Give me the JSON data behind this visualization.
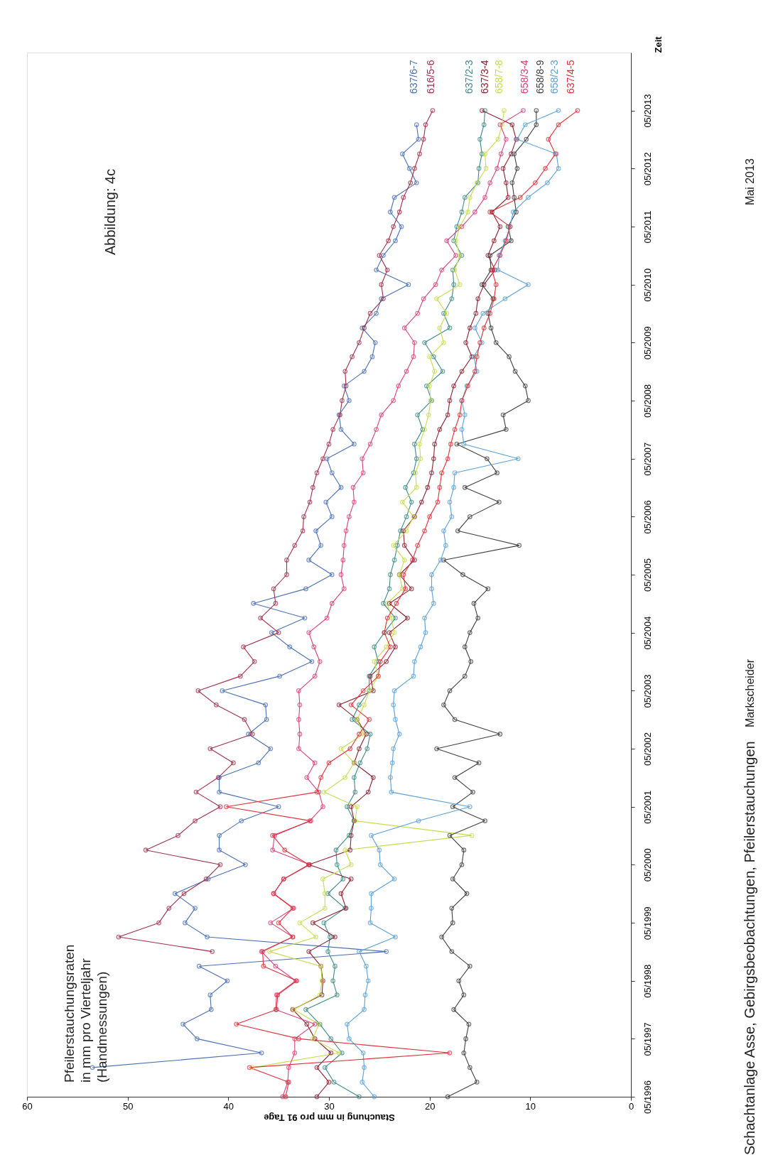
{
  "chart_data": {
    "type": "line",
    "orientation": "horizontal",
    "title": "Abbildung: 4c",
    "xlabel": "Stauchung in mm pro 91 Tage",
    "ylabel": "Zeit",
    "annotations": [
      "Pfeilerstauchungsraten\nin mm pro Vierteljahr\n(Handmessungen)",
      "Schachtanlage Asse, Gebirgsbeobachtungen, Pfeilerstauchungen",
      "Markscheider",
      "Mai 2013"
    ],
    "legend": "top",
    "grid": false,
    "marker": "circle",
    "line_style": "solid",
    "xlim": [
      60,
      0
    ],
    "xticks": [
      60,
      50,
      40,
      30,
      20,
      10,
      0
    ],
    "ylim": [
      "1996-05",
      "2014-05"
    ],
    "yticks": [
      {
        "value": "1996-05",
        "label": "05/1996"
      },
      {
        "value": "1997-05",
        "label": "05/1997"
      },
      {
        "value": "1998-05",
        "label": "05/1998"
      },
      {
        "value": "1999-05",
        "label": "05/1999"
      },
      {
        "value": "2000-05",
        "label": "05/2000"
      },
      {
        "value": "2001-05",
        "label": "05/2001"
      },
      {
        "value": "2002-05",
        "label": "05/2002"
      },
      {
        "value": "2003-05",
        "label": "05/2003"
      },
      {
        "value": "2004-05",
        "label": "05/2004"
      },
      {
        "value": "2005-05",
        "label": "05/2005"
      },
      {
        "value": "2006-05",
        "label": "05/2006"
      },
      {
        "value": "2007-05",
        "label": "05/2007"
      },
      {
        "value": "2008-05",
        "label": "05/2008"
      },
      {
        "value": "2009-05",
        "label": "05/2009"
      },
      {
        "value": "2010-05",
        "label": "05/2010"
      },
      {
        "value": "2011-05",
        "label": "05/2011"
      },
      {
        "value": "2012-05",
        "label": "05/2012"
      },
      {
        "value": "2013-05",
        "label": "05/2013"
      }
    ],
    "x": [
      "1996-05",
      "1996-08",
      "1996-11",
      "1997-02",
      "1997-05",
      "1997-08",
      "1997-11",
      "1998-02",
      "1998-05",
      "1998-08",
      "1998-11",
      "1999-02",
      "1999-05",
      "1999-08",
      "1999-11",
      "2000-02",
      "2000-05",
      "2000-08",
      "2000-11",
      "2001-02",
      "2001-05",
      "2001-08",
      "2001-11",
      "2002-02",
      "2002-05",
      "2002-08",
      "2002-11",
      "2003-02",
      "2003-05",
      "2003-08",
      "2003-11",
      "2004-02",
      "2004-05",
      "2004-08",
      "2004-11",
      "2005-02",
      "2005-05",
      "2005-08",
      "2005-11",
      "2006-02",
      "2006-05",
      "2006-08",
      "2006-11",
      "2007-02",
      "2007-05",
      "2007-08",
      "2007-11",
      "2008-02",
      "2008-05",
      "2008-08",
      "2008-11",
      "2009-02",
      "2009-05",
      "2009-08",
      "2009-11",
      "2010-02",
      "2010-05",
      "2010-08",
      "2010-11",
      "2011-02",
      "2011-05",
      "2011-08",
      "2011-11",
      "2012-02",
      "2012-05",
      "2012-08",
      "2012-11",
      "2013-02",
      "2013-05"
    ],
    "series": [
      {
        "name": "637/6-7",
        "color": "#4a6fb5",
        "values": [
          null,
          null,
          53.5,
          36.7,
          43.1,
          44.5,
          41.7,
          41.8,
          40.1,
          42.9,
          24.3,
          42.1,
          44.3,
          43.3,
          45.3,
          42.0,
          38.3,
          40.9,
          40.9,
          38.7,
          35.0,
          40.9,
          40.9,
          37.0,
          35.8,
          38.0,
          36.2,
          36.3,
          40.6,
          34.9,
          31.7,
          33.9,
          35.7,
          32.4,
          37.5,
          32.3,
          29.7,
          32.0,
          30.8,
          31.3,
          29.7,
          30.3,
          28.8,
          29.7,
          30.2,
          27.5,
          28.8,
          29.0,
          28.0,
          28.5,
          26.5,
          25.7,
          25.4,
          26.7,
          25.3,
          24.8,
          22.1,
          25.3,
          24.6,
          23.4,
          22.8,
          23.9,
          23.5,
          21.3,
          22.0,
          22.7,
          21.1,
          21.3,
          null
        ]
      },
      {
        "name": "616/5-6",
        "color": "#a0304a",
        "values": [
          null,
          null,
          null,
          null,
          null,
          null,
          null,
          null,
          null,
          null,
          41.6,
          50.9,
          46.9,
          45.9,
          44.4,
          42.2,
          40.8,
          48.2,
          45.0,
          43.3,
          40.8,
          43.2,
          41.0,
          39.5,
          41.8,
          37.6,
          38.4,
          41.2,
          43.0,
          38.8,
          37.4,
          38.5,
          35.0,
          36.8,
          35.3,
          35.5,
          34.2,
          34.2,
          33.4,
          32.6,
          32.5,
          31.9,
          31.6,
          31.2,
          30.6,
          30.0,
          29.6,
          28.9,
          28.7,
          28.3,
          28.4,
          27.7,
          27.0,
          26.5,
          25.9,
          24.6,
          24.8,
          24.2,
          25.0,
          24.1,
          23.6,
          23.0,
          22.6,
          21.9,
          21.5,
          21.0,
          20.6,
          20.4,
          19.7
        ]
      },
      {
        "name": "637/2-3",
        "color": "#3d8a86",
        "values": [
          27.0,
          29.5,
          30.4,
          28.7,
          29.8,
          30.9,
          32.3,
          29.2,
          29.6,
          29.4,
          30.1,
          29.9,
          30.5,
          28.4,
          30.1,
          28.6,
          29.2,
          29.3,
          28.0,
          27.5,
          28.2,
          27.4,
          27.5,
          26.9,
          26.2,
          25.9,
          27.7,
          27.0,
          26.0,
          26.0,
          25.1,
          25.5,
          24.5,
          23.4,
          24.6,
          24.0,
          23.9,
          23.5,
          23.2,
          22.9,
          22.3,
          21.8,
          22.4,
          21.6,
          21.3,
          21.5,
          20.7,
          21.2,
          19.8,
          20.3,
          18.7,
          19.6,
          20.5,
          18.0,
          18.6,
          17.8,
          17.6,
          17.7,
          16.8,
          17.6,
          17.3,
          16.8,
          16.5,
          15.2,
          15.1,
          14.8,
          15.0,
          14.6,
          14.5
        ]
      },
      {
        "name": "637/3-4",
        "color": "#8b2030",
        "values": [
          31.2,
          30.0,
          31.2,
          29.8,
          31.4,
          32.2,
          33.6,
          30.7,
          30.6,
          30.8,
          32.0,
          29.4,
          31.6,
          28.3,
          28.8,
          27.8,
          32.0,
          27.9,
          27.8,
          27.5,
          27.8,
          26.1,
          25.6,
          27.5,
          27.0,
          26.3,
          27.2,
          29.0,
          25.6,
          25.9,
          24.3,
          23.4,
          24.0,
          22.2,
          24.0,
          21.8,
          23.0,
          21.5,
          22.5,
          22.6,
          21.5,
          20.8,
          20.2,
          19.8,
          19.6,
          19.5,
          19.0,
          18.2,
          18.0,
          17.6,
          16.8,
          15.8,
          16.4,
          16.0,
          15.4,
          15.2,
          14.6,
          13.5,
          14.2,
          13.6,
          13.0,
          13.8,
          12.2,
          12.4,
          12.7,
          11.9,
          11.4,
          11.8,
          14.8
        ]
      },
      {
        "name": "658/7-8",
        "color": "#c8dc50",
        "values": [
          null,
          null,
          37.6,
          29.0,
          31.6,
          31.0,
          33.5,
          30.9,
          30.7,
          30.8,
          35.9,
          31.3,
          32.9,
          30.4,
          30.4,
          30.6,
          27.8,
          28.4,
          15.8,
          27.4,
          27.2,
          30.5,
          28.4,
          27.5,
          28.8,
          26.6,
          27.2,
          26.5,
          26.0,
          25.1,
          25.5,
          24.3,
          23.5,
          23.8,
          24.2,
          22.7,
          23.0,
          22.5,
          23.6,
          22.3,
          21.6,
          22.7,
          21.3,
          21.4,
          20.9,
          21.0,
          20.5,
          20.1,
          19.9,
          20.0,
          19.5,
          20.0,
          18.6,
          19.0,
          18.3,
          19.3,
          17.0,
          17.5,
          17.0,
          17.4,
          17.0,
          16.2,
          16.0,
          15.3,
          14.4,
          14.5,
          13.2,
          12.8,
          12.6
        ]
      },
      {
        "name": "658/3-4",
        "color": "#d8407a",
        "values": [
          34.6,
          34.1,
          34.0,
          33.4,
          33.4,
          31.4,
          35.3,
          35.2,
          33.3,
          35.3,
          36.7,
          33.6,
          35.8,
          33.5,
          35.5,
          34.5,
          31.9,
          35.6,
          35.4,
          31.9,
          30.6,
          31.0,
          32.2,
          31.4,
          33.0,
          32.9,
          33.0,
          32.9,
          33.0,
          31.4,
          30.9,
          31.5,
          32.0,
          30.2,
          29.7,
          28.5,
          28.8,
          28.6,
          28.5,
          28.3,
          28.0,
          27.5,
          27.6,
          26.6,
          26.7,
          25.9,
          25.3,
          24.8,
          23.6,
          23.1,
          22.3,
          21.6,
          21.5,
          22.5,
          21.2,
          20.6,
          19.4,
          18.8,
          17.4,
          18.3,
          16.8,
          15.5,
          14.5,
          14.0,
          13.3,
          12.9,
          12.4,
          13.0,
          10.7
        ]
      },
      {
        "name": "658/8-9",
        "color": "#404040",
        "values": [
          18.2,
          15.3,
          16.0,
          16.6,
          16.4,
          16.1,
          17.6,
          16.6,
          17.1,
          16.0,
          17.8,
          18.8,
          17.7,
          17.8,
          16.3,
          17.7,
          16.8,
          16.6,
          18.0,
          14.5,
          17.7,
          15.7,
          17.5,
          15.1,
          19.3,
          13.0,
          17.5,
          18.6,
          18.0,
          16.5,
          15.9,
          16.5,
          16.0,
          15.2,
          15.6,
          14.2,
          16.7,
          18.6,
          11.1,
          17.2,
          16.0,
          13.1,
          16.5,
          13.3,
          14.3,
          17.3,
          12.4,
          12.7,
          10.2,
          10.5,
          11.5,
          12.1,
          13.4,
          13.9,
          14.2,
          13.7,
          14.8,
          13.9,
          14.0,
          11.9,
          12.2,
          11.4,
          11.6,
          11.8,
          11.3,
          11.6,
          10.4,
          9.4,
          9.4
        ]
      },
      {
        "name": "658/2-3",
        "color": "#5aa0d8",
        "values": [
          25.5,
          26.7,
          26.5,
          26.6,
          28.0,
          28.2,
          26.5,
          26.4,
          26.1,
          26.3,
          27.0,
          23.4,
          25.9,
          25.8,
          25.8,
          23.5,
          24.9,
          25.0,
          25.8,
          21.1,
          16.0,
          23.8,
          23.9,
          23.7,
          23.6,
          23.0,
          23.4,
          23.6,
          23.5,
          21.6,
          21.5,
          20.9,
          20.4,
          20.5,
          19.6,
          19.8,
          19.8,
          18.9,
          18.4,
          18.6,
          17.8,
          18.0,
          17.6,
          17.5,
          11.2,
          16.6,
          16.8,
          16.5,
          16.8,
          16.3,
          15.3,
          15.6,
          14.8,
          15.5,
          14.7,
          12.5,
          10.2,
          13.2,
          13.1,
          12.5,
          12.0,
          11.7,
          10.2,
          8.3,
          7.2,
          7.4,
          11.3,
          10.5,
          7.2
        ]
      },
      {
        "name": "637/4-5",
        "color": "#e0303a",
        "values": [
          34.3,
          34.0,
          37.9,
          18.0,
          33.0,
          39.2,
          35.2,
          35.1,
          33.2,
          36.5,
          36.6,
          33.6,
          35.0,
          33.6,
          35.5,
          34.5,
          32.0,
          34.4,
          35.6,
          31.8,
          40.2,
          31.2,
          30.8,
          30.0,
          27.9,
          27.0,
          26.0,
          27.8,
          26.6,
          25.1,
          24.9,
          23.9,
          24.5,
          24.2,
          23.3,
          22.4,
          22.6,
          21.7,
          21.2,
          20.5,
          20.0,
          19.2,
          19.0,
          18.8,
          18.2,
          17.9,
          17.5,
          17.0,
          16.8,
          16.2,
          15.5,
          15.3,
          15.0,
          14.6,
          14.0,
          13.6,
          13.4,
          13.8,
          13.0,
          12.4,
          12.0,
          14.0,
          11.0,
          9.5,
          8.5,
          7.5,
          8.2,
          7.2,
          5.3
        ]
      }
    ]
  }
}
